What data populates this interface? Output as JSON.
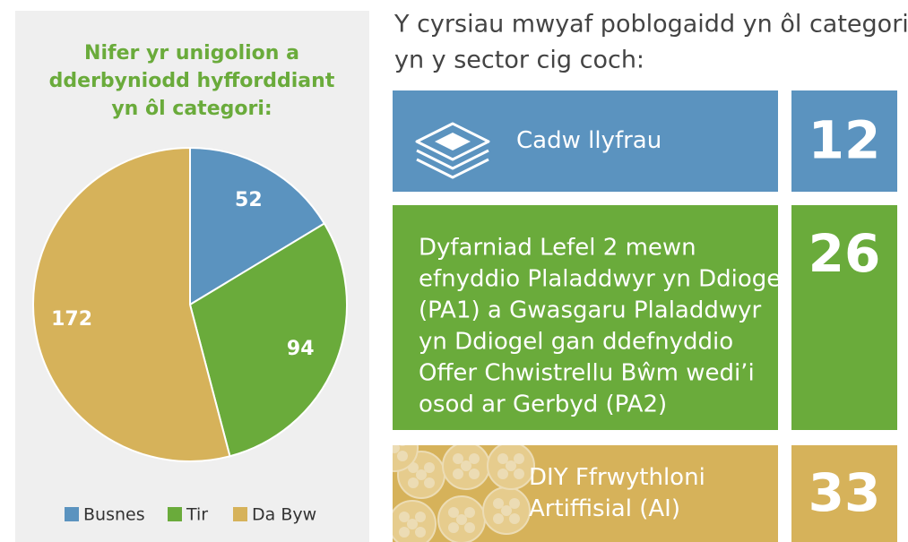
{
  "chart_data": {
    "type": "pie",
    "title": [
      "Nifer yr unigolion a",
      "dderbyniodd hyfforddiant",
      "yn ôl categori:"
    ],
    "categories": [
      "Busnes",
      "Tir",
      "Da Byw"
    ],
    "values": [
      52,
      94,
      172
    ],
    "colors": [
      "#5b93bf",
      "#6aab3b",
      "#d6b25a"
    ],
    "legend": "bottom"
  },
  "courses": {
    "heading": [
      "Y cyrsiau mwyaf poblogaidd yn ôl categori",
      "yn y sector cig coch:"
    ],
    "items": [
      {
        "label": [
          "Cadw llyfrau"
        ],
        "value": "12",
        "color": "#5b93bf"
      },
      {
        "label": [
          "Dyfarniad Lefel 2 mewn",
          "efnyddio Plaladdwyr yn Ddiogel",
          "(PA1) a Gwasgaru Plaladdwyr",
          "yn Ddiogel gan ddefnyddio",
          "Offer Chwistrellu Bŵm wedi’i",
          "osod ar Gerbyd (PA2)"
        ],
        "value": "26",
        "color": "#6aab3b"
      },
      {
        "label": [
          "DIY Ffrwythloni",
          "Artiffisial (AI)"
        ],
        "value": "33",
        "color": "#d6b25a"
      }
    ]
  }
}
